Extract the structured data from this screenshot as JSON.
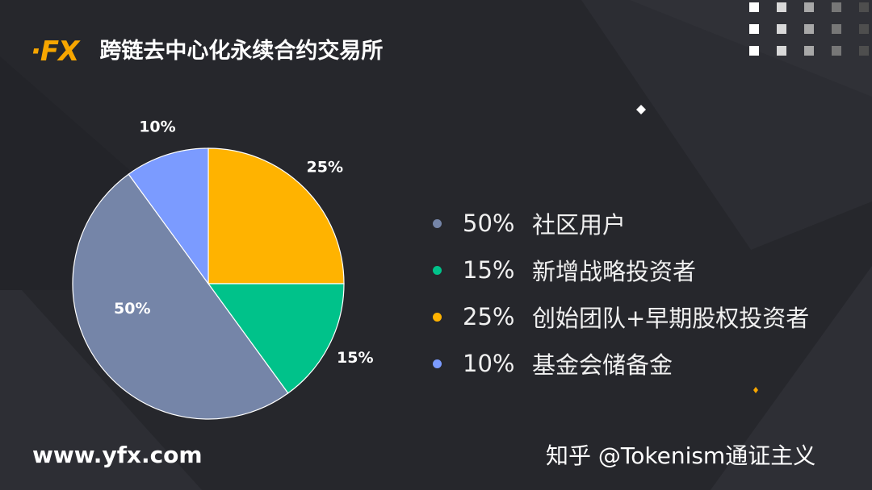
{
  "brand": {
    "logo_text": "·FX",
    "title": "跨链去中心化永续合约交易所"
  },
  "chart_data": {
    "type": "pie",
    "slices": [
      {
        "value": 25,
        "label": "25%",
        "color": "#ffb300"
      },
      {
        "value": 15,
        "label": "15%",
        "color": "#00c28a"
      },
      {
        "value": 50,
        "label": "50%",
        "color": "#7585a8"
      },
      {
        "value": 10,
        "label": "10%",
        "color": "#7b9bff"
      }
    ],
    "legend": [
      {
        "pct": "50%",
        "name": "社区用户",
        "color": "#7585a8"
      },
      {
        "pct": "15%",
        "name": "新增战略投资者",
        "color": "#00c28a"
      },
      {
        "pct": "25%",
        "name": "创始团队+早期股权投资者",
        "color": "#ffb300"
      },
      {
        "pct": "10%",
        "name": "基金会储备金",
        "color": "#7b9bff"
      }
    ]
  },
  "footer": {
    "website": "www.yfx.com",
    "credit": "知乎 @Tokenism通证主义"
  }
}
